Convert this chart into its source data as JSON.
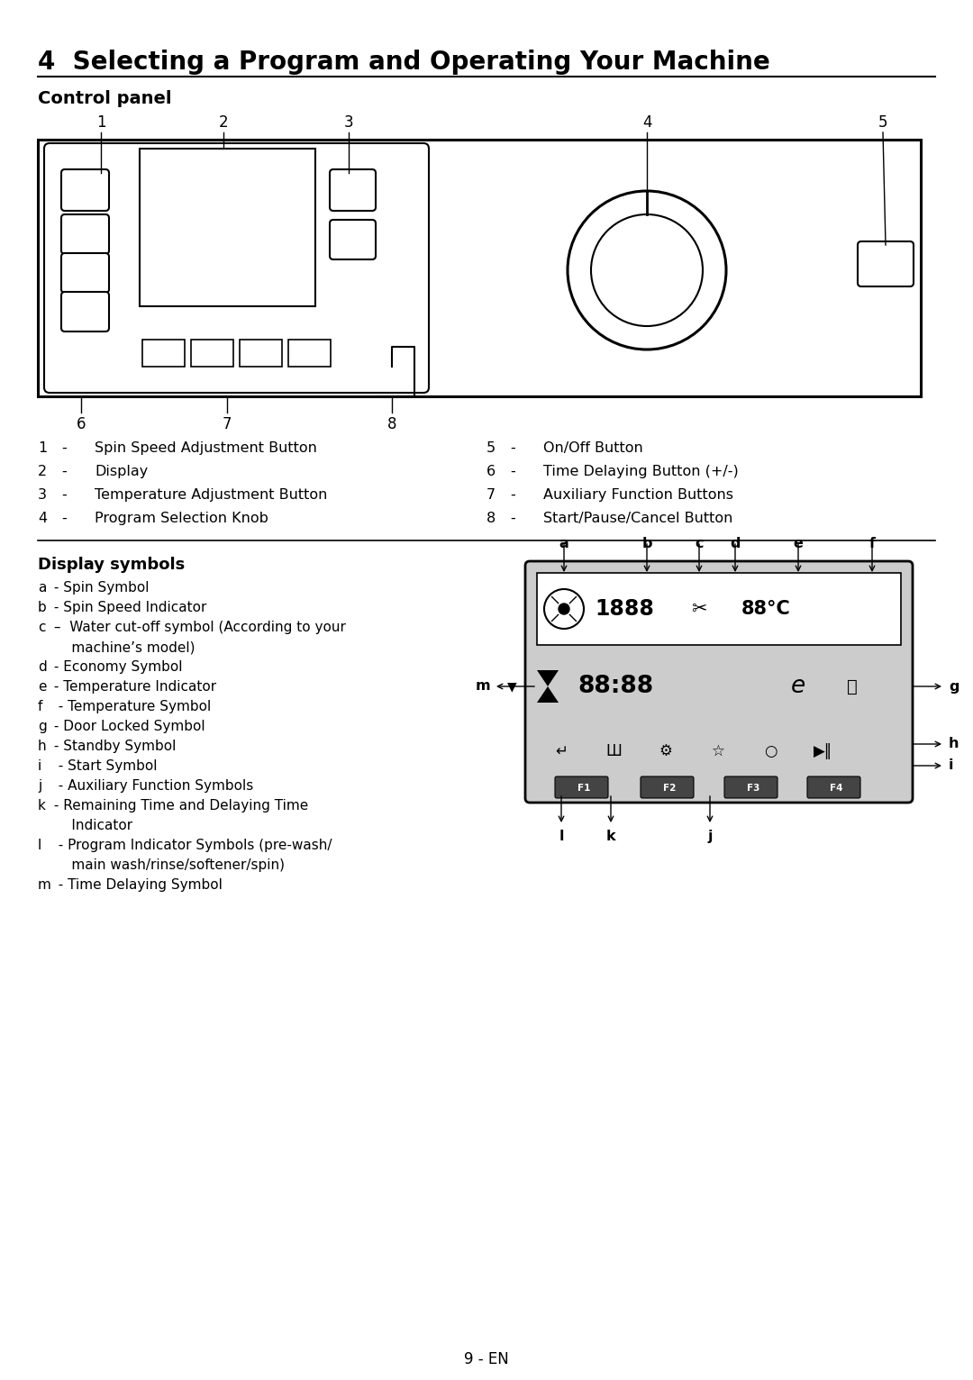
{
  "title": "4  Selecting a Program and Operating Your Machine",
  "subtitle": "Control panel",
  "bg_color": "#ffffff",
  "text_color": "#000000",
  "page_number": "9 - EN",
  "legend_left": [
    [
      "1",
      "-",
      "Spin Speed Adjustment Button"
    ],
    [
      "2",
      "-",
      "Display"
    ],
    [
      "3",
      "-",
      "Temperature Adjustment Button"
    ],
    [
      "4",
      "-",
      "Program Selection Knob"
    ]
  ],
  "legend_right": [
    [
      "5",
      "-",
      "On/Off Button"
    ],
    [
      "6",
      "-",
      "Time Delaying Button (+/-)"
    ],
    [
      "7",
      "-",
      "Auxiliary Function Buttons"
    ],
    [
      "8",
      "-",
      "Start/Pause/Cancel Button"
    ]
  ],
  "display_symbols_title": "Display symbols",
  "display_symbols_left": [
    [
      "a",
      " - Spin Symbol"
    ],
    [
      "b",
      " - Spin Speed Indicator"
    ],
    [
      "c",
      " –  Water cut-off symbol (According to your\n     machine’s model)"
    ],
    [
      "d",
      " - Economy Symbol"
    ],
    [
      "e",
      " - Temperature Indicator"
    ],
    [
      "f",
      "  - Temperature Symbol"
    ],
    [
      "g",
      " - Door Locked Symbol"
    ],
    [
      "h",
      " - Standby Symbol"
    ],
    [
      "i",
      "  - Start Symbol"
    ],
    [
      "j",
      "  - Auxiliary Function Symbols"
    ],
    [
      "k",
      " - Remaining Time and Delaying Time\n     Indicator"
    ],
    [
      "l",
      "  - Program Indicator Symbols (pre-wash/\n     main wash/rinse/softener/spin)"
    ],
    [
      "m",
      "  - Time Delaying Symbol"
    ]
  ]
}
